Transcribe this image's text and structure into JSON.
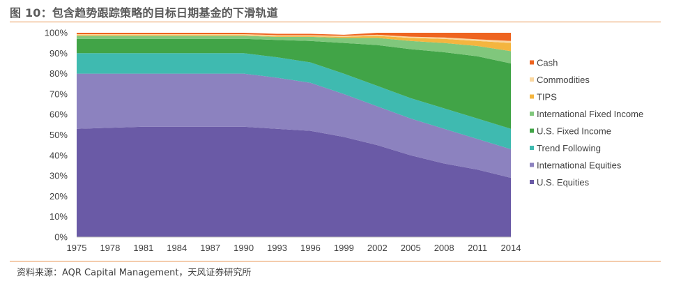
{
  "figure": {
    "title": "图 10：包含趋势跟踪策略的目标日期基金的下滑轨道",
    "source": "资料来源：AQR Capital Management，天风证券研究所"
  },
  "chart_data": {
    "type": "area",
    "stacked": true,
    "title": "图 10：包含趋势跟踪策略的目标日期基金的下滑轨道",
    "xlabel": "",
    "ylabel": "",
    "x": [
      1975,
      1978,
      1981,
      1984,
      1987,
      1990,
      1993,
      1996,
      1999,
      2002,
      2005,
      2008,
      2011,
      2014
    ],
    "x_tick_labels": [
      "1975",
      "1978",
      "1981",
      "1984",
      "1987",
      "1990",
      "1993",
      "1996",
      "1999",
      "2002",
      "2005",
      "2008",
      "2011",
      "2014"
    ],
    "ylim": [
      0,
      100
    ],
    "y_ticks": [
      0,
      10,
      20,
      30,
      40,
      50,
      60,
      70,
      80,
      90,
      100
    ],
    "y_tick_labels": [
      "0%",
      "10%",
      "20%",
      "30%",
      "40%",
      "50%",
      "60%",
      "70%",
      "80%",
      "90%",
      "100%"
    ],
    "grid": false,
    "legend_position": "right",
    "series": [
      {
        "name": "U.S. Equities",
        "color": "#6a5aa6",
        "values": [
          53,
          53.5,
          54,
          54,
          54,
          54,
          53,
          52,
          49,
          45,
          40,
          36,
          33,
          29
        ]
      },
      {
        "name": "International Equities",
        "color": "#8c82bf",
        "values": [
          27,
          26.5,
          26,
          26,
          26,
          26,
          25,
          23.5,
          21,
          19,
          18,
          17,
          15,
          14
        ]
      },
      {
        "name": "Trend Following",
        "color": "#3fbab0",
        "values": [
          10,
          10,
          10,
          10,
          10,
          10,
          10,
          10,
          10,
          10,
          10,
          10,
          10,
          10
        ]
      },
      {
        "name": "U.S. Fixed Income",
        "color": "#41a447",
        "values": [
          7,
          7,
          7,
          7,
          7,
          7,
          8.5,
          10.5,
          15,
          20,
          24,
          27.5,
          30.5,
          32
        ]
      },
      {
        "name": "International Fixed Income",
        "color": "#80c77c",
        "values": [
          1.5,
          1.5,
          1.5,
          1.5,
          1.5,
          1.5,
          1.5,
          2,
          2.5,
          3.5,
          4,
          4.5,
          5,
          6
        ]
      },
      {
        "name": "TIPS",
        "color": "#f4b53f",
        "values": [
          0.3,
          0.3,
          0.3,
          0.3,
          0.3,
          0.3,
          0.3,
          0.3,
          0.5,
          1,
          1.5,
          2,
          2.5,
          4
        ]
      },
      {
        "name": "Commodities",
        "color": "#fad7a0",
        "values": [
          0.5,
          0.5,
          0.5,
          0.5,
          0.5,
          0.5,
          0.5,
          0.5,
          0.5,
          0.5,
          0.6,
          0.7,
          0.8,
          1
        ]
      },
      {
        "name": "Cash",
        "color": "#ee6420",
        "values": [
          0.7,
          0.7,
          0.7,
          0.7,
          0.7,
          0.7,
          0.7,
          0.7,
          0.5,
          1,
          1.9,
          2.3,
          3.2,
          4
        ]
      }
    ]
  }
}
